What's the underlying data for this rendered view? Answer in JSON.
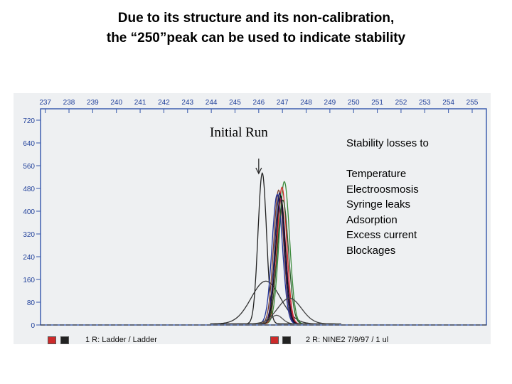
{
  "slide": {
    "title_line1": "Due to its structure and its non-calibration,",
    "title_line2": "the “250”peak can be used to indicate stability"
  },
  "annotations": {
    "initial_run": "Initial Run",
    "stability_heading": "Stability losses to",
    "causes": [
      "Temperature",
      "Electroosmosis",
      "Syringe leaks",
      "Adsorption",
      "Excess current",
      "Blockages"
    ]
  },
  "footer": {
    "left_label": "1 R: Ladder / Ladder",
    "right_label": "2 R: NINE2  7/9/97  /  1 ul",
    "swatch_colors": [
      "#cc2a2a",
      "#222222"
    ]
  },
  "chart_data": {
    "type": "line",
    "x_ticks": [
      237,
      238,
      239,
      240,
      241,
      242,
      243,
      244,
      245,
      246,
      247,
      248,
      249,
      250,
      251,
      252,
      253,
      254,
      255
    ],
    "y_ticks": [
      0,
      80,
      160,
      240,
      320,
      400,
      480,
      560,
      640,
      720
    ],
    "xlim": [
      236.8,
      255.6
    ],
    "ylim": [
      0,
      760
    ],
    "grid": false,
    "series": [
      {
        "color": "#222222",
        "peak_x": 246.15,
        "peak_y": 530,
        "width": 0.18,
        "role": "initial-run"
      },
      {
        "color": "#333333",
        "peak_x": 246.3,
        "peak_y": 150,
        "width": 0.62,
        "role": "broad"
      },
      {
        "color": "#3a8a3a",
        "peak_x": 247.08,
        "peak_y": 500,
        "width": 0.22
      },
      {
        "color": "#d12a2a",
        "peak_x": 246.98,
        "peak_y": 480,
        "width": 0.2
      },
      {
        "color": "#7a3e2a",
        "peak_x": 246.84,
        "peak_y": 470,
        "width": 0.21
      },
      {
        "color": "#223399",
        "peak_x": 246.78,
        "peak_y": 455,
        "width": 0.22
      },
      {
        "color": "#1a1a6a",
        "peak_x": 246.88,
        "peak_y": 460,
        "width": 0.2
      },
      {
        "color": "#aa2255",
        "peak_x": 246.93,
        "peak_y": 440,
        "width": 0.21
      },
      {
        "color": "#2a5a2a",
        "peak_x": 247.02,
        "peak_y": 435,
        "width": 0.23
      },
      {
        "color": "#111111",
        "peak_x": 246.92,
        "peak_y": 450,
        "width": 0.2
      },
      {
        "color": "#555555",
        "peak_x": 246.75,
        "peak_y": 30,
        "width": 0.25
      },
      {
        "color": "#444444",
        "peak_x": 247.3,
        "peak_y": 90,
        "width": 0.5
      }
    ],
    "axis_color": "#3355aa",
    "text_color": "#1f3f9a",
    "arrow_x": 246.0
  }
}
